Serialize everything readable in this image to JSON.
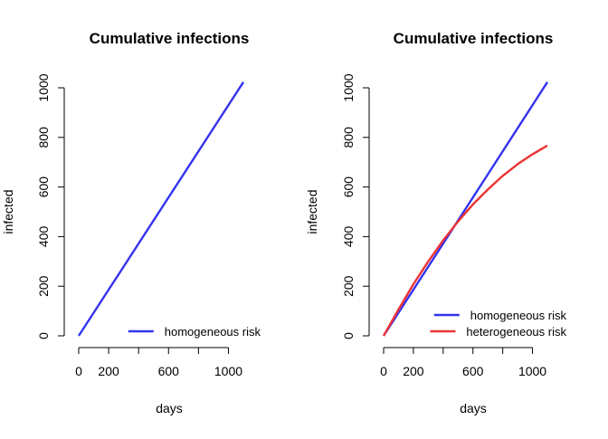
{
  "chart_data": [
    {
      "type": "line",
      "title": "Cumulative infections",
      "xlabel": "days",
      "ylabel": "infected",
      "xlim": [
        0,
        1100
      ],
      "ylim": [
        0,
        1025
      ],
      "x_ticks": [
        0,
        200,
        400,
        600,
        800,
        1000
      ],
      "x_tick_labels": [
        "0",
        "200",
        "",
        "600",
        "",
        "1000"
      ],
      "y_ticks": [
        0,
        200,
        400,
        600,
        800,
        1000
      ],
      "y_tick_labels": [
        "0",
        "200",
        "400",
        "600",
        "800",
        "1000"
      ],
      "grid": false,
      "legend_position": "bottom-right",
      "series": [
        {
          "name": "homogeneous risk",
          "color": "#3333ee",
          "x": [
            0,
            1100
          ],
          "y": [
            0,
            1023
          ]
        }
      ]
    },
    {
      "type": "line",
      "title": "Cumulative infections",
      "xlabel": "days",
      "ylabel": "infected",
      "xlim": [
        0,
        1100
      ],
      "ylim": [
        0,
        1025
      ],
      "x_ticks": [
        0,
        200,
        400,
        600,
        800,
        1000
      ],
      "x_tick_labels": [
        "0",
        "200",
        "",
        "600",
        "",
        "1000"
      ],
      "y_ticks": [
        0,
        200,
        400,
        600,
        800,
        1000
      ],
      "y_tick_labels": [
        "0",
        "200",
        "400",
        "600",
        "800",
        "1000"
      ],
      "grid": false,
      "legend_position": "bottom-right",
      "series": [
        {
          "name": "homogeneous risk",
          "color": "#3333ee",
          "x": [
            0,
            1100
          ],
          "y": [
            0,
            1023
          ]
        },
        {
          "name": "heterogeneous risk",
          "color": "#ee3333",
          "x": [
            0,
            100,
            200,
            300,
            400,
            500,
            600,
            700,
            800,
            900,
            1000,
            1100
          ],
          "y": [
            0,
            106,
            208,
            300,
            385,
            461,
            530,
            590,
            645,
            692,
            732,
            767
          ]
        }
      ]
    }
  ]
}
